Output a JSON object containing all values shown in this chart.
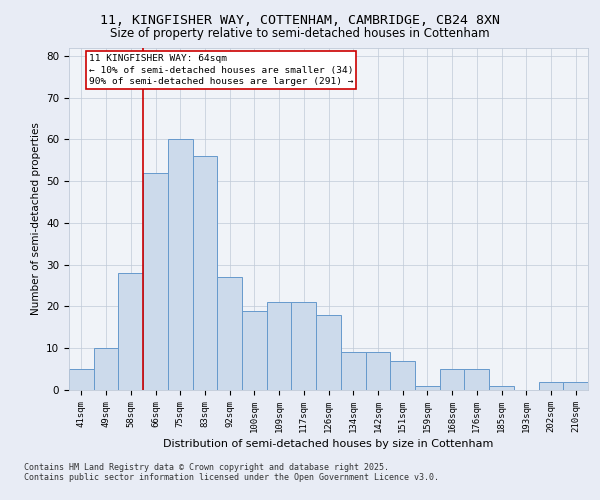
{
  "title1": "11, KINGFISHER WAY, COTTENHAM, CAMBRIDGE, CB24 8XN",
  "title2": "Size of property relative to semi-detached houses in Cottenham",
  "xlabel": "Distribution of semi-detached houses by size in Cottenham",
  "ylabel": "Number of semi-detached properties",
  "categories": [
    "41sqm",
    "49sqm",
    "58sqm",
    "66sqm",
    "75sqm",
    "83sqm",
    "92sqm",
    "100sqm",
    "109sqm",
    "117sqm",
    "126sqm",
    "134sqm",
    "142sqm",
    "151sqm",
    "159sqm",
    "168sqm",
    "176sqm",
    "185sqm",
    "193sqm",
    "202sqm",
    "210sqm"
  ],
  "values": [
    5,
    10,
    28,
    52,
    60,
    56,
    27,
    19,
    21,
    21,
    18,
    9,
    9,
    7,
    1,
    5,
    5,
    1,
    0,
    2,
    2
  ],
  "bar_color": "#ccdaeb",
  "bar_edge_color": "#6699cc",
  "highlight_color": "#cc0000",
  "annotation_title": "11 KINGFISHER WAY: 64sqm",
  "annotation_line1": "← 10% of semi-detached houses are smaller (34)",
  "annotation_line2": "90% of semi-detached houses are larger (291) →",
  "ylim": [
    0,
    82
  ],
  "yticks": [
    0,
    10,
    20,
    30,
    40,
    50,
    60,
    70,
    80
  ],
  "footer1": "Contains HM Land Registry data © Crown copyright and database right 2025.",
  "footer2": "Contains public sector information licensed under the Open Government Licence v3.0.",
  "bg_color": "#e8ecf5",
  "plot_bg_color": "#f0f3f8"
}
